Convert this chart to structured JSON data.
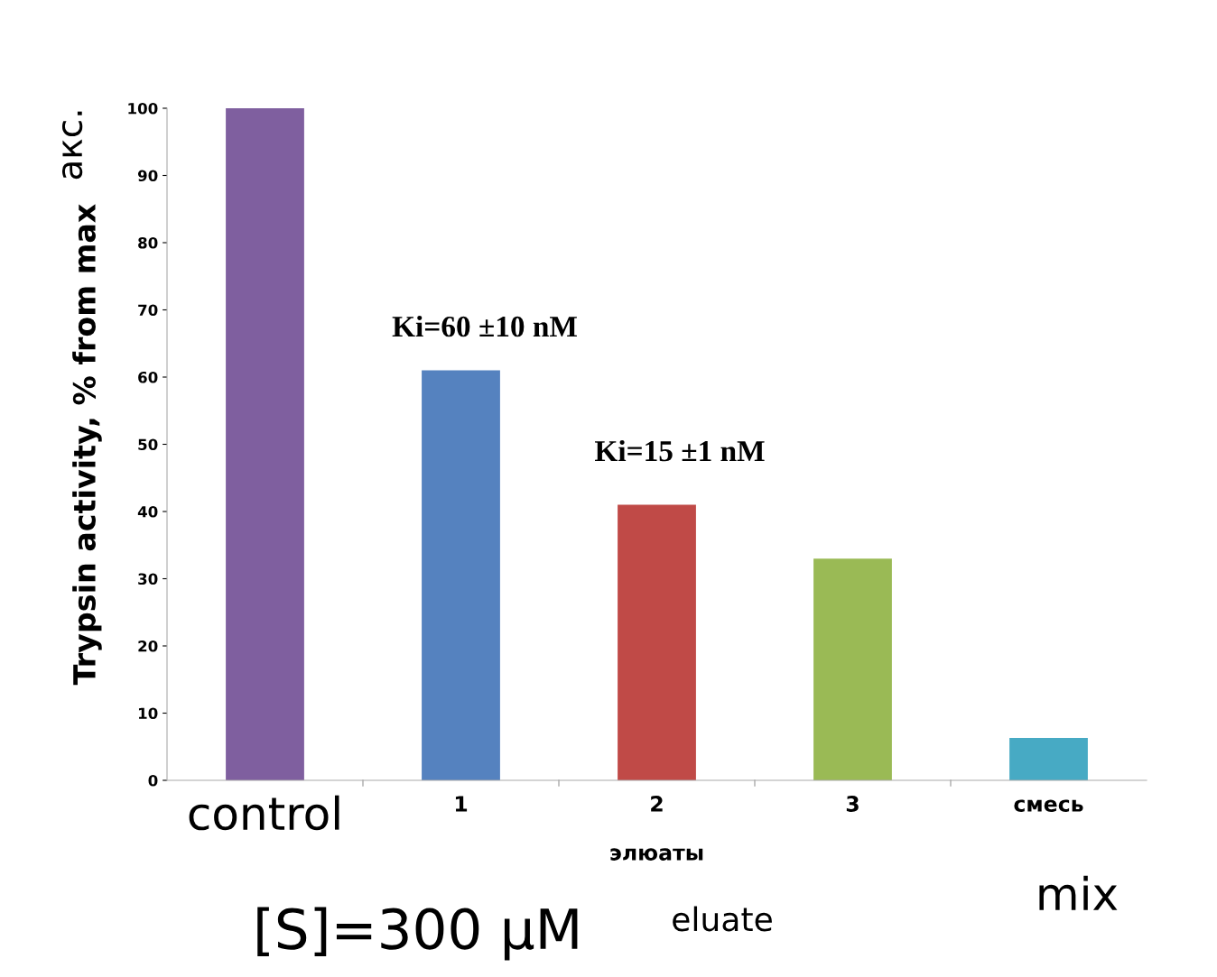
{
  "chart_data": {
    "type": "bar",
    "ylabel": "Trypsin activity, % from max",
    "xlabel": "элюаты",
    "categories": [
      "control",
      "1",
      "2",
      "3",
      "смесь"
    ],
    "values": [
      100,
      61,
      41,
      33,
      6.3
    ],
    "colors": [
      "#7f5f9f",
      "#5582bf",
      "#c04a47",
      "#9aba55",
      "#47aac4"
    ],
    "ylim": [
      0,
      100
    ],
    "yticks": [
      0,
      10,
      20,
      30,
      40,
      50,
      60,
      70,
      80,
      90,
      100
    ],
    "grid": false,
    "annotations": [
      "Ki=60 ±10 nM",
      "Ki=15 ±1 nM",
      "акс.",
      "eluate",
      "mix",
      "[S]=300 μM"
    ]
  }
}
